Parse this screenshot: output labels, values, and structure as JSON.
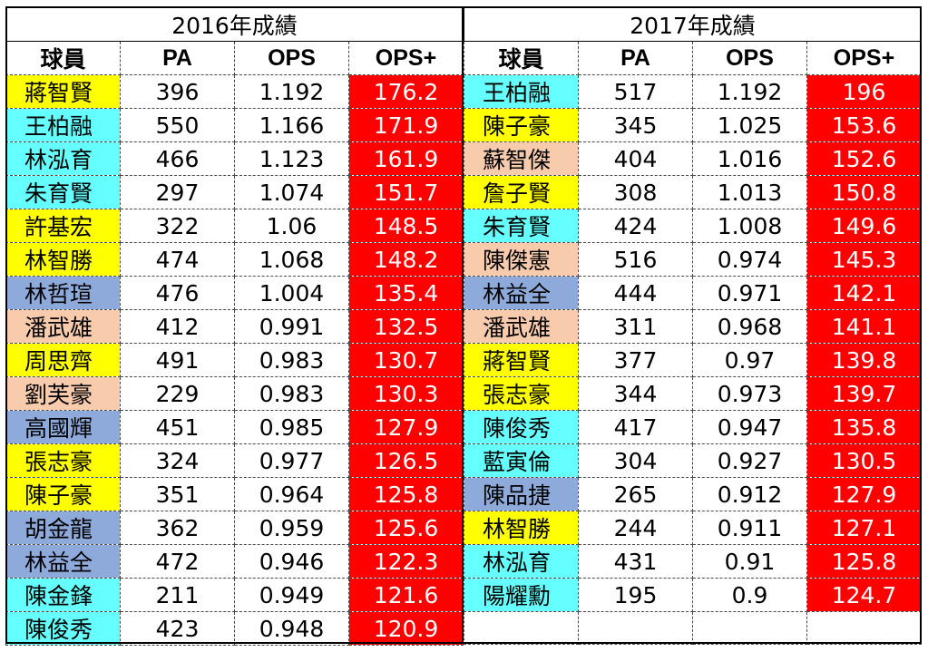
{
  "colors": {
    "yellow": "#ffff00",
    "cyan": "#66ffff",
    "blue": "#8eaadb",
    "peach": "#f8cbad",
    "red": "#ff0000",
    "white": "#ffffff"
  },
  "headers": {
    "player": "球員",
    "pa": "PA",
    "ops": "OPS",
    "ops_plus": "OPS+"
  },
  "left": {
    "title": "2016年成績",
    "rows": [
      {
        "name": "蔣智賢",
        "pa": "396",
        "ops": "1.192",
        "ops_plus": "176.2",
        "color": "yellow"
      },
      {
        "name": "王柏融",
        "pa": "550",
        "ops": "1.166",
        "ops_plus": "171.9",
        "color": "cyan"
      },
      {
        "name": "林泓育",
        "pa": "466",
        "ops": "1.123",
        "ops_plus": "161.9",
        "color": "cyan"
      },
      {
        "name": "朱育賢",
        "pa": "297",
        "ops": "1.074",
        "ops_plus": "151.7",
        "color": "cyan"
      },
      {
        "name": "許基宏",
        "pa": "322",
        "ops": "1.06",
        "ops_plus": "148.5",
        "color": "yellow"
      },
      {
        "name": "林智勝",
        "pa": "474",
        "ops": "1.068",
        "ops_plus": "148.2",
        "color": "yellow"
      },
      {
        "name": "林哲瑄",
        "pa": "476",
        "ops": "1.004",
        "ops_plus": "135.4",
        "color": "blue"
      },
      {
        "name": "潘武雄",
        "pa": "412",
        "ops": "0.991",
        "ops_plus": "132.5",
        "color": "peach"
      },
      {
        "name": "周思齊",
        "pa": "491",
        "ops": "0.983",
        "ops_plus": "130.7",
        "color": "yellow"
      },
      {
        "name": "劉芙豪",
        "pa": "229",
        "ops": "0.983",
        "ops_plus": "130.3",
        "color": "peach"
      },
      {
        "name": "高國輝",
        "pa": "451",
        "ops": "0.985",
        "ops_plus": "127.9",
        "color": "blue"
      },
      {
        "name": "張志豪",
        "pa": "324",
        "ops": "0.977",
        "ops_plus": "126.5",
        "color": "yellow"
      },
      {
        "name": "陳子豪",
        "pa": "351",
        "ops": "0.964",
        "ops_plus": "125.8",
        "color": "yellow"
      },
      {
        "name": "胡金龍",
        "pa": "362",
        "ops": "0.959",
        "ops_plus": "125.6",
        "color": "blue"
      },
      {
        "name": "林益全",
        "pa": "472",
        "ops": "0.946",
        "ops_plus": "122.3",
        "color": "blue"
      },
      {
        "name": "陳金鋒",
        "pa": "211",
        "ops": "0.949",
        "ops_plus": "121.6",
        "color": "cyan"
      },
      {
        "name": "陳俊秀",
        "pa": "423",
        "ops": "0.948",
        "ops_plus": "120.9",
        "color": "cyan"
      }
    ]
  },
  "right": {
    "title": "2017年成績",
    "rows": [
      {
        "name": "王柏融",
        "pa": "517",
        "ops": "1.192",
        "ops_plus": "196",
        "color": "cyan"
      },
      {
        "name": "陳子豪",
        "pa": "345",
        "ops": "1.025",
        "ops_plus": "153.6",
        "color": "yellow"
      },
      {
        "name": "蘇智傑",
        "pa": "404",
        "ops": "1.016",
        "ops_plus": "152.6",
        "color": "peach"
      },
      {
        "name": "詹子賢",
        "pa": "308",
        "ops": "1.013",
        "ops_plus": "150.8",
        "color": "yellow"
      },
      {
        "name": "朱育賢",
        "pa": "424",
        "ops": "1.008",
        "ops_plus": "149.6",
        "color": "cyan"
      },
      {
        "name": "陳傑憲",
        "pa": "516",
        "ops": "0.974",
        "ops_plus": "145.3",
        "color": "peach"
      },
      {
        "name": "林益全",
        "pa": "444",
        "ops": "0.971",
        "ops_plus": "142.1",
        "color": "blue"
      },
      {
        "name": "潘武雄",
        "pa": "311",
        "ops": "0.968",
        "ops_plus": "141.1",
        "color": "peach"
      },
      {
        "name": "蔣智賢",
        "pa": "377",
        "ops": "0.97",
        "ops_plus": "139.8",
        "color": "yellow"
      },
      {
        "name": "張志豪",
        "pa": "344",
        "ops": "0.973",
        "ops_plus": "139.7",
        "color": "yellow"
      },
      {
        "name": "陳俊秀",
        "pa": "417",
        "ops": "0.947",
        "ops_plus": "135.8",
        "color": "cyan"
      },
      {
        "name": "藍寅倫",
        "pa": "304",
        "ops": "0.927",
        "ops_plus": "130.5",
        "color": "cyan"
      },
      {
        "name": "陳品捷",
        "pa": "265",
        "ops": "0.912",
        "ops_plus": "127.9",
        "color": "blue"
      },
      {
        "name": "林智勝",
        "pa": "244",
        "ops": "0.911",
        "ops_plus": "127.1",
        "color": "yellow"
      },
      {
        "name": "林泓育",
        "pa": "431",
        "ops": "0.91",
        "ops_plus": "125.8",
        "color": "cyan"
      },
      {
        "name": "陽耀勳",
        "pa": "195",
        "ops": "0.9",
        "ops_plus": "124.7",
        "color": "cyan"
      }
    ]
  }
}
